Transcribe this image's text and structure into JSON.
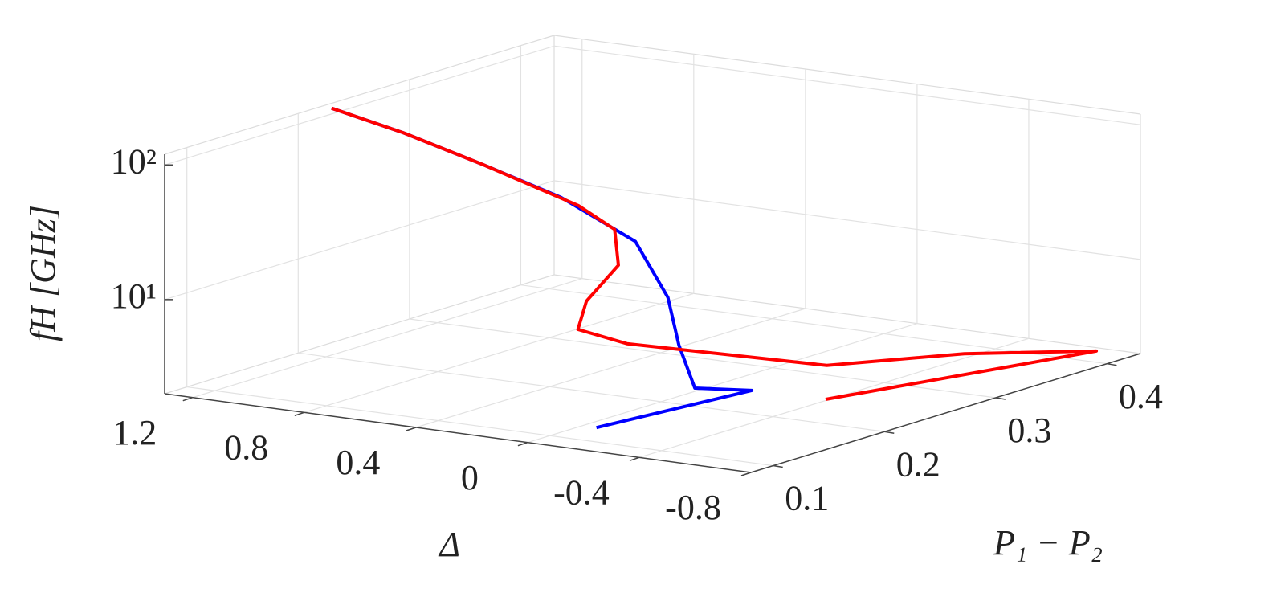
{
  "chart_data": {
    "type": "line3d",
    "xlabel": "Δ",
    "ylabel": "P₁ − P₂",
    "zlabel": "fH [GHz]",
    "xlim": [
      -0.8,
      1.3
    ],
    "xticks": [
      1.2,
      0.8,
      0.4,
      0,
      -0.4,
      -0.8
    ],
    "ylim": [
      0.08,
      0.43
    ],
    "yticks": [
      0.1,
      0.2,
      0.3,
      0.4
    ],
    "zlim": [
      2,
      120
    ],
    "zscale": "log",
    "zticks": [
      {
        "value": 10,
        "label": "10¹"
      },
      {
        "value": 100,
        "label": "10²"
      }
    ],
    "grid": true,
    "series": [
      {
        "color": "#0000ff",
        "x": [
          1.26,
          1.02,
          0.72,
          0.51,
          0.2,
          -0.084,
          -0.267,
          -0.4,
          -0.52,
          -0.147
        ],
        "y": [
          0.22,
          0.224,
          0.22,
          0.238,
          0.227,
          0.185,
          0.149,
          0.13,
          0.151,
          0.105
        ],
        "z": [
          120,
          90,
          65,
          38,
          23.3,
          13.7,
          8.4,
          4.9,
          4.5,
          2.45
        ]
      },
      {
        "color": "#ff0000",
        "x": [
          1.26,
          1.02,
          0.72,
          0.44,
          0.29,
          0.145,
          0.088,
          0.015,
          -0.025,
          -0.41,
          -0.52,
          -0.67,
          -0.39
        ],
        "y": [
          0.22,
          0.224,
          0.22,
          0.236,
          0.231,
          0.198,
          0.155,
          0.129,
          0.163,
          0.246,
          0.342,
          0.423,
          0.25
        ],
        "z": [
          120,
          90,
          65,
          35,
          26.4,
          19,
          13.7,
          10.3,
          6.8,
          3.7,
          2.78,
          2.0,
          2.0
        ]
      }
    ]
  }
}
